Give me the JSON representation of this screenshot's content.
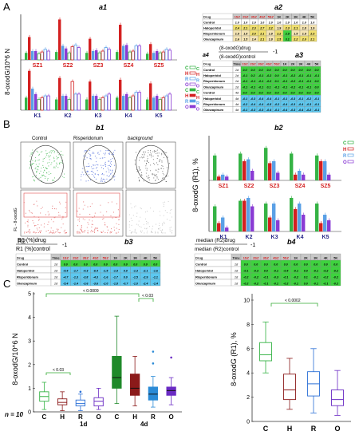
{
  "panels": {
    "A": "A",
    "B": "B",
    "C": "C"
  },
  "colors": {
    "C": "#35b345",
    "H": "#d42020",
    "R": "#5aa0e6",
    "O": "#8a3bd4",
    "header": "#c8c8c8",
    "green": "#3ed23e",
    "blue": "#5cc8f0",
    "yellow": "#f0e070",
    "pink": "#d63c8c"
  },
  "a1": {
    "title": "a1",
    "ylabel": "8-oxodG/10^6 N",
    "sz_labels": [
      "SZ1",
      "SZ2",
      "SZ3",
      "SZ4",
      "SZ5"
    ],
    "k_labels": [
      "K1",
      "K2",
      "K3",
      "K4",
      "K5"
    ],
    "legend": [
      "C",
      "H",
      "R",
      "O",
      "C",
      "H",
      "R",
      "O"
    ]
  },
  "a2": {
    "title": "a2",
    "head": [
      "Drug",
      "1SZ",
      "2SZ",
      "3SZ",
      "4SZ",
      "5SZ",
      "1K",
      "2K",
      "3K",
      "4K",
      "5K"
    ],
    "rows": [
      {
        "drug": "Control",
        "time": "w/st",
        "vals": [
          "1.0",
          "1.0",
          "1.0",
          "1.0",
          "1.0",
          "1.0",
          "1.0",
          "1.0",
          "1.0",
          "1.0"
        ]
      },
      {
        "drug": "Haloperidol",
        "time": "w/st",
        "vals": [
          "2.4",
          "2.1",
          "2.3",
          "2.7",
          "2.2",
          "1.9",
          "2.3",
          "2.1",
          "1.8",
          "1.9"
        ]
      },
      {
        "drug": "Risperidonum",
        "time": "w/st",
        "vals": [
          "1.9",
          "1.8",
          "2.0",
          "2.1",
          "1.8",
          "2.2",
          "2.9",
          "1.5",
          "1.9",
          "2.3"
        ]
      },
      {
        "drug": "Olanzapinum",
        "time": "w/st",
        "vals": [
          "1.6",
          "1.5",
          "1.4",
          "2.1",
          "1.8",
          "2.5",
          "3.1",
          "2.2",
          "2.0",
          "2.1"
        ]
      }
    ]
  },
  "a3": {
    "title": "a3",
    "formula_num": "(8-oxodG)drug",
    "formula_den": "(8-oxodG)control",
    "formula_tail": "-1",
    "head": [
      "Drug",
      "Time",
      "1SZ",
      "2SZ",
      "3SZ",
      "4SZ",
      "5SZ",
      "1K",
      "2K",
      "3K",
      "4K",
      "5K"
    ],
    "rows": [
      {
        "drug": "Control",
        "time": "1d",
        "vals": [
          "0.0",
          "0.0",
          "0.0",
          "0.0",
          "0.0",
          "0.0",
          "0.0",
          "0.0",
          "0.0",
          "0.0"
        ]
      },
      {
        "drug": "Haloperidol",
        "time": "1d",
        "vals": [
          "-0.1",
          "0.2",
          "-0.1",
          "-0.2",
          "0.0",
          "-0.1",
          "-0.2",
          "-0.1",
          "-0.1",
          "-0.1"
        ]
      },
      {
        "drug": "Risperidonum",
        "time": "1d",
        "vals": [
          "-0.1",
          "-0.1",
          "-0.1",
          "-0.2",
          "0.1",
          "-0.1",
          "-0.2",
          "-0.1",
          "-0.1",
          "0.0"
        ]
      },
      {
        "drug": "Olanzapinum",
        "time": "1d",
        "vals": [
          "-0.1",
          "-0.1",
          "-0.1",
          "0.1",
          "-0.1",
          "-0.1",
          "-0.2",
          "-0.1",
          "-0.1",
          "0.0"
        ]
      },
      {
        "drug": "Control",
        "time": "4d",
        "vals": [
          "0.0",
          "0.0",
          "0.0",
          "0.0",
          "0.0",
          "0.0",
          "0.0",
          "0.0",
          "0.0",
          "0.0"
        ]
      },
      {
        "drug": "Haloperidol",
        "time": "4d",
        "vals": [
          "-0.1",
          "-0.3",
          "-0.4",
          "-0.4",
          "-0.1",
          "-0.1",
          "-0.3",
          "-0.1",
          "-0.2",
          "-0.1"
        ]
      },
      {
        "drug": "Risperidonum",
        "time": "4d",
        "vals": [
          "-0.2",
          "-0.4",
          "-0.4",
          "-0.5",
          "-0.2",
          "-0.4",
          "-0.3",
          "-0.4",
          "-0.3",
          "-0.1"
        ]
      },
      {
        "drug": "Olanzapinum",
        "time": "4d",
        "vals": [
          "-0.1",
          "-0.3",
          "-0.3",
          "-0.4",
          "-0.1",
          "-0.4",
          "-0.3",
          "-0.4",
          "-0.2",
          "-0.1"
        ]
      }
    ],
    "a4": "a4"
  },
  "b1": {
    "title": "b1",
    "cols": [
      "Control",
      "Risperidonum",
      "background"
    ],
    "r1": "R1",
    "r2": "R2",
    "ylabel": "FL - 8-oxodG",
    "axis_top": "FSC-A",
    "axis_bottom": "FL - 8-oxodG"
  },
  "b2": {
    "title": "b2",
    "ylabel": "8-oxodG (R1), %",
    "sz_labels": [
      "SZ1",
      "SZ2",
      "SZ3",
      "SZ4",
      "SZ5"
    ],
    "k_labels": [
      "K1",
      "K2",
      "K3",
      "K4",
      "K5"
    ],
    "legend": [
      "C",
      "H",
      "R",
      "O"
    ]
  },
  "b3": {
    "title": "b3",
    "formula_num": "R1 (%)drug",
    "formula_den": "R1 (%)control",
    "formula_tail": "-1",
    "head": [
      "Drug",
      "Time",
      "1SZ",
      "2SZ",
      "3SZ",
      "4SZ",
      "5SZ",
      "1K",
      "2K",
      "3K",
      "4K",
      "5K"
    ],
    "rows": [
      {
        "drug": "Control",
        "time": "1d",
        "vals": [
          "0.0",
          "0.0",
          "0.0",
          "0.0",
          "0.0",
          "0.0",
          "0.0",
          "0.0",
          "0.0",
          "0.0"
        ]
      },
      {
        "drug": "Haloperidol",
        "time": "1d",
        "vals": [
          "-5.4",
          "-1.7",
          "-4.3",
          "-6.4",
          "-1.5",
          "-1.9",
          "0.0",
          "-1.3",
          "-2.1",
          "-1.6"
        ]
      },
      {
        "drug": "Risperidonum",
        "time": "1d",
        "vals": [
          "-4.7",
          "-1.3",
          "-3.8",
          "-4.3",
          "-1.6",
          "-1.7",
          "0.0",
          "-1.5",
          "-2.9",
          "-1.1"
        ]
      },
      {
        "drug": "Olanzapinum",
        "time": "1d",
        "vals": [
          "-5.4",
          "-1.4",
          "-3.6",
          "-3.6",
          "-2.0",
          "-1.8",
          "-0.7",
          "-1.0",
          "-2.4",
          "-1.4"
        ]
      }
    ]
  },
  "b4": {
    "title": "b4",
    "formula_num": "median (R2)drug",
    "formula_den": "median (R2)control",
    "formula_tail": "-1",
    "head": [
      "Drug",
      "Time",
      "1SZ",
      "2SZ",
      "3SZ",
      "4SZ",
      "5SZ",
      "1K",
      "2K",
      "3K",
      "4K",
      "5K"
    ],
    "rows": [
      {
        "drug": "Control",
        "time": "1d",
        "vals": [
          "0.0",
          "0.0",
          "0.0",
          "0.0",
          "0.0",
          "0.0",
          "0.0",
          "0.0",
          "0.0",
          "0.0"
        ]
      },
      {
        "drug": "Haloperidol",
        "time": "1d",
        "vals": [
          "-0.1",
          "-0.3",
          "0.0",
          "-0.1",
          "-0.4",
          "-0.1",
          "0.0",
          "-0.1",
          "-0.2",
          "-0.2"
        ]
      },
      {
        "drug": "Risperidonum",
        "time": "1d",
        "vals": [
          "-0.2",
          "-0.2",
          "-0.1",
          "-0.3",
          "-0.1",
          "-0.2",
          "0.1",
          "-0.1",
          "-0.2",
          "-0.2"
        ]
      },
      {
        "drug": "Olanzapinum",
        "time": "1d",
        "vals": [
          "-0.2",
          "-0.2",
          "-0.1",
          "-0.1",
          "-0.2",
          "-0.1",
          "0.0",
          "-0.1",
          "-0.1",
          "-0.2"
        ]
      }
    ]
  },
  "c1": {
    "title": "c1",
    "ylabel": "8-oxodG/10^6 N",
    "yticks": [
      "0",
      "1",
      "2",
      "3",
      "4",
      "5"
    ],
    "groups": [
      "C",
      "H",
      "R",
      "O",
      "C",
      "H",
      "R",
      "O"
    ],
    "time1": "1d",
    "time2": "4d",
    "n_label": "n = 10",
    "p1": "< 0.0009",
    "p2": "< 0.03",
    "p3": "< 0.03"
  },
  "c2": {
    "title": "c2",
    "ylabel": "8-oxodG (R1), %",
    "yticks": [
      "0",
      "2",
      "4",
      "6",
      "8",
      "10"
    ],
    "groups": [
      "C",
      "H",
      "R",
      "O"
    ],
    "p": "< 0.0002"
  },
  "chart_data": [
    {
      "type": "bar",
      "title": "a1",
      "ylabel": "8-oxodG/10^6 N",
      "categories": [
        "SZ1",
        "SZ2",
        "SZ3",
        "SZ4",
        "SZ5"
      ],
      "series": [
        {
          "name": "C",
          "values": [
            0.8,
            0.9,
            0.8,
            0.9,
            0.7
          ]
        },
        {
          "name": "H",
          "values": [
            2.6,
            4.6,
            2.4,
            4.0,
            1.8
          ]
        },
        {
          "name": "R",
          "values": [
            1.0,
            1.6,
            1.0,
            1.6,
            0.8
          ]
        },
        {
          "name": "O",
          "values": [
            1.0,
            1.3,
            1.1,
            1.7,
            1.0
          ]
        },
        {
          "name": "C",
          "values": [
            0.7,
            0.8,
            0.8,
            0.9,
            0.8
          ]
        },
        {
          "name": "H",
          "values": [
            0.9,
            1.5,
            1.0,
            1.0,
            0.9
          ]
        },
        {
          "name": "R",
          "values": [
            1.2,
            1.7,
            1.4,
            1.6,
            1.2
          ]
        },
        {
          "name": "O",
          "values": [
            1.0,
            1.4,
            1.2,
            1.6,
            1.1
          ]
        }
      ],
      "ylim": [
        0,
        5
      ]
    },
    {
      "type": "bar",
      "title": "a1",
      "categories": [
        "K1",
        "K2",
        "K3",
        "K4",
        "K5"
      ],
      "series": [
        {
          "name": "C",
          "values": [
            0.7,
            0.6,
            0.6,
            0.7,
            0.6
          ]
        },
        {
          "name": "H",
          "values": [
            2.2,
            1.8,
            1.6,
            1.7,
            1.5
          ]
        },
        {
          "name": "R",
          "values": [
            1.2,
            0.8,
            0.8,
            0.8,
            0.7
          ]
        },
        {
          "name": "O",
          "values": [
            0.9,
            0.8,
            0.8,
            0.9,
            0.8
          ]
        },
        {
          "name": "C",
          "values": [
            0.6,
            0.6,
            0.6,
            0.7,
            0.6
          ]
        },
        {
          "name": "H",
          "values": [
            0.7,
            1.6,
            0.7,
            0.8,
            0.7
          ]
        },
        {
          "name": "R",
          "values": [
            0.8,
            0.9,
            0.8,
            1.0,
            0.8
          ]
        },
        {
          "name": "O",
          "values": [
            0.8,
            0.9,
            0.9,
            1.0,
            0.9
          ]
        }
      ],
      "ylim": [
        0,
        2.5
      ]
    },
    {
      "type": "bar",
      "title": "b2",
      "ylabel": "8-oxodG (R1), %",
      "categories": [
        "SZ1",
        "SZ2",
        "SZ3",
        "SZ4",
        "SZ5"
      ],
      "series": [
        {
          "name": "C",
          "values": [
            6.5,
            7.0,
            8.5,
            7.0,
            6.5
          ]
        },
        {
          "name": "H",
          "values": [
            1.0,
            5.0,
            4.5,
            1.5,
            5.0
          ]
        },
        {
          "name": "R",
          "values": [
            1.5,
            5.5,
            5.0,
            2.5,
            5.0
          ]
        },
        {
          "name": "O",
          "values": [
            1.0,
            2.5,
            2.0,
            1.5,
            1.5
          ]
        }
      ],
      "ylim": [
        0,
        10
      ]
    },
    {
      "type": "bar",
      "title": "b2",
      "categories": [
        "K1",
        "K2",
        "K3",
        "K4",
        "K5"
      ],
      "series": [
        {
          "name": "C",
          "values": [
            4.5,
            5.5,
            5.0,
            6.0,
            5.0
          ]
        },
        {
          "name": "H",
          "values": [
            1.5,
            5.5,
            2.5,
            4.0,
            1.5
          ]
        },
        {
          "name": "R",
          "values": [
            2.5,
            6.0,
            5.0,
            5.0,
            3.0
          ]
        },
        {
          "name": "O",
          "values": [
            0.7,
            4.5,
            2.0,
            3.0,
            2.0
          ]
        }
      ],
      "ylim": [
        0,
        8
      ]
    },
    {
      "type": "box",
      "title": "c1",
      "ylabel": "8-oxodG/10^6 N",
      "categories": [
        "C 1d",
        "H 1d",
        "R 1d",
        "O 1d",
        "C 4d",
        "H 4d",
        "R 4d",
        "O 4d"
      ],
      "values": [
        {
          "min": 0.1,
          "q1": 0.45,
          "median": 0.65,
          "q3": 0.85,
          "max": 1.25
        },
        {
          "min": 0.05,
          "q1": 0.3,
          "median": 0.4,
          "q3": 0.55,
          "max": 0.85
        },
        {
          "min": 0.05,
          "q1": 0.25,
          "median": 0.35,
          "q3": 0.5,
          "max": 0.75,
          "outliers": [
            0.85
          ]
        },
        {
          "min": 0.1,
          "q1": 0.25,
          "median": 0.45,
          "q3": 0.6,
          "max": 1.0
        },
        {
          "min": 0.35,
          "q1": 1.0,
          "median": 1.45,
          "q3": 2.35,
          "max": 4.05
        },
        {
          "min": 0.25,
          "q1": 0.7,
          "median": 1.0,
          "q3": 1.6,
          "max": 2.35
        },
        {
          "min": 0.2,
          "q1": 0.5,
          "median": 0.75,
          "q3": 1.05,
          "max": 1.5,
          "outliers": [
            2.05,
            2.55
          ]
        },
        {
          "min": 0.3,
          "q1": 0.7,
          "median": 0.9,
          "q3": 1.05,
          "max": 1.45,
          "outliers": [
            2.3
          ]
        }
      ],
      "ylim": [
        0,
        5
      ]
    },
    {
      "type": "box",
      "title": "c2",
      "ylabel": "8-oxodG (R1), %",
      "categories": [
        "C",
        "H",
        "R",
        "O"
      ],
      "values": [
        {
          "min": 4.0,
          "q1": 5.0,
          "median": 5.5,
          "q3": 6.5,
          "max": 8.2
        },
        {
          "min": 1.0,
          "q1": 1.8,
          "median": 2.6,
          "q3": 3.9,
          "max": 5.2
        },
        {
          "min": 0.7,
          "q1": 2.1,
          "median": 3.1,
          "q3": 4.1,
          "max": 6.0
        },
        {
          "min": 0.5,
          "q1": 1.3,
          "median": 1.8,
          "q3": 2.6,
          "max": 4.2
        }
      ],
      "ylim": [
        0,
        10
      ]
    }
  ]
}
